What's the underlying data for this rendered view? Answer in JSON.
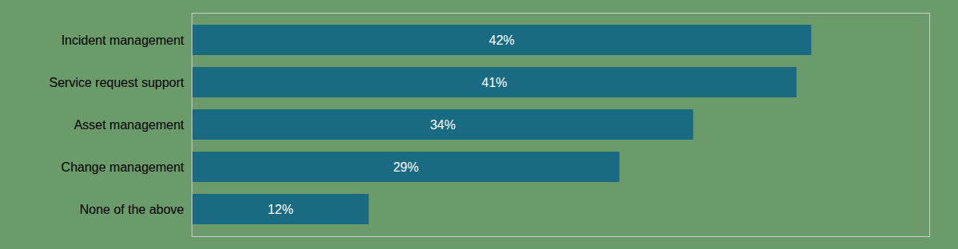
{
  "chart_data": {
    "type": "bar",
    "orientation": "horizontal",
    "categories": [
      "Incident management",
      "Service request support",
      "Asset management",
      "Change management",
      "None of the above"
    ],
    "values": [
      42,
      41,
      34,
      29,
      12
    ],
    "value_labels": [
      "42%",
      "41%",
      "34%",
      "29%",
      "12%"
    ],
    "data_labels": true,
    "color": "#1a6b82",
    "xlim": [
      0,
      50
    ],
    "xticks": [],
    "tick_labels": "y"
  }
}
